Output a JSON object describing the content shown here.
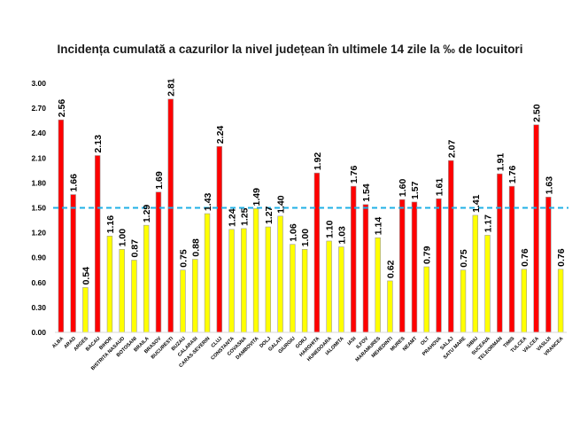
{
  "chart_data": {
    "type": "bar",
    "title": "Incidența cumulată a cazurilor la nivel județean în ultimele 14 zile la ‰ de locuitori",
    "xlabel": "",
    "ylabel": "",
    "ylim": [
      0,
      3.0
    ],
    "yticks": [
      "0.00",
      "0.30",
      "0.60",
      "0.90",
      "1.20",
      "1.50",
      "1.80",
      "2.10",
      "2.40",
      "2.70",
      "3.00"
    ],
    "threshold": 1.5,
    "grid": false,
    "legend": "none",
    "colors": {
      "above": "#ff0000",
      "below": "#ffff00",
      "threshold_line": "#1fb0e6",
      "bar_border": "#999999"
    },
    "categories": [
      "ALBA",
      "ARAD",
      "ARGES",
      "BACAU",
      "BIHOR",
      "BISTRITA NASAUD",
      "BOTOSANI",
      "BRAILA",
      "BRASOV",
      "BUCURESTI",
      "BUZAU",
      "CALARASI",
      "CARAS-SEVERIN",
      "CLUJ",
      "CONSTANTA",
      "COVASNA",
      "DAMBOVITA",
      "DOLJ",
      "GALATI",
      "GIURGIU",
      "GORJ",
      "HARGHITA",
      "HUNEDOARA",
      "IALOMITA",
      "IASI",
      "ILFOV",
      "MARAMURES",
      "MEHEDINTI",
      "MURES",
      "NEAMT",
      "OLT",
      "PRAHOVA",
      "SALAJ",
      "SATU MARE",
      "SIBIU",
      "SUCEAVA",
      "TELEORMAN",
      "TIMIS",
      "TULCEA",
      "VALCEA",
      "VASLUI",
      "VRANCEA"
    ],
    "values": [
      2.56,
      1.66,
      0.54,
      2.13,
      1.16,
      1.0,
      0.87,
      1.29,
      1.69,
      2.81,
      0.75,
      0.88,
      1.43,
      2.24,
      1.24,
      1.25,
      1.49,
      1.27,
      1.4,
      1.06,
      1.0,
      1.92,
      1.1,
      1.03,
      1.76,
      1.54,
      1.14,
      0.62,
      1.6,
      1.57,
      0.79,
      1.61,
      2.07,
      0.75,
      1.41,
      1.17,
      1.91,
      1.76,
      0.76,
      2.5,
      1.63,
      0.76
    ],
    "labels": [
      "2.56",
      "1.66",
      "0.54",
      "2.13",
      "1.16",
      "1.00",
      "0.87",
      "1.29",
      "1.69",
      "2.81",
      "0.75",
      "0.88",
      "1.43",
      "2.24",
      "1.24",
      "1.25",
      "1.49",
      "1.27",
      "1.40",
      "1.06",
      "1.00",
      "1.92",
      "1.10",
      "1.03",
      "1.76",
      "1.54",
      "1.14",
      "0.62",
      "1.60",
      "1.57",
      "0.79",
      "1.61",
      "2.07",
      "0.75",
      "1.41",
      "1.17",
      "1.91",
      "1.76",
      "0.76",
      "2.50",
      "1.63",
      "0.76"
    ]
  }
}
